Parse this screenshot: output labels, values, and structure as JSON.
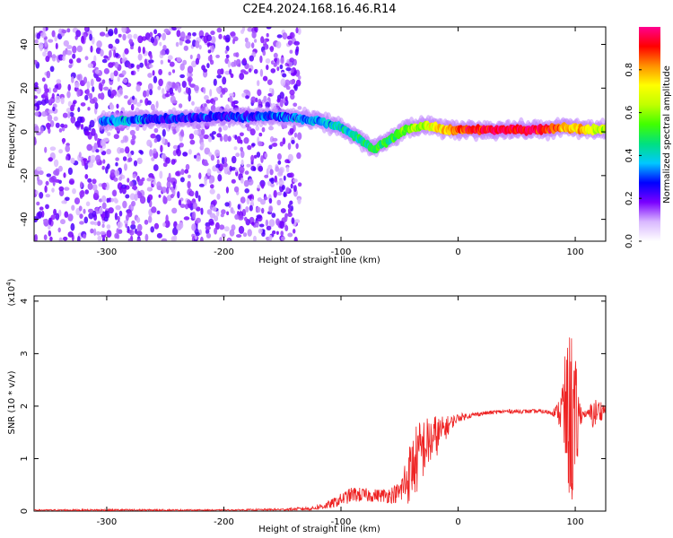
{
  "title": "C2E4.2024.168.16.46.R14",
  "chart_data": [
    {
      "type": "heatmap",
      "xlabel": "Height of straight line (km)",
      "ylabel": "Frequency (Hz)",
      "xlim": [
        -362,
        126
      ],
      "ylim": [
        -50,
        48
      ],
      "xticks": [
        -300,
        -200,
        -100,
        0,
        100
      ],
      "xtick_labels": [
        "-300",
        "-200",
        "-100",
        "0",
        "100"
      ],
      "yticks": [
        -40,
        -20,
        0,
        20,
        40
      ],
      "ytick_labels": [
        "-40",
        "-20",
        "0",
        "20",
        "40"
      ],
      "grid": false,
      "noise_region": {
        "x_range": [
          -362,
          -135
        ],
        "y_range": [
          -50,
          48
        ],
        "level": 0.1
      },
      "ridge": [
        {
          "x": -305,
          "y": 5,
          "amp": 0.3
        },
        {
          "x": -290,
          "y": 5,
          "amp": 0.35
        },
        {
          "x": -270,
          "y": 6,
          "amp": 0.3
        },
        {
          "x": -250,
          "y": 6,
          "amp": 0.25
        },
        {
          "x": -200,
          "y": 7,
          "amp": 0.25
        },
        {
          "x": -150,
          "y": 7,
          "amp": 0.3
        },
        {
          "x": -120,
          "y": 5,
          "amp": 0.35
        },
        {
          "x": -100,
          "y": 2,
          "amp": 0.4
        },
        {
          "x": -85,
          "y": -3,
          "amp": 0.45
        },
        {
          "x": -72,
          "y": -8,
          "amp": 0.5
        },
        {
          "x": -60,
          "y": -4,
          "amp": 0.5
        },
        {
          "x": -45,
          "y": 1,
          "amp": 0.55
        },
        {
          "x": -30,
          "y": 3,
          "amp": 0.6
        },
        {
          "x": -10,
          "y": 1,
          "amp": 0.8
        },
        {
          "x": 10,
          "y": 1,
          "amp": 0.9
        },
        {
          "x": 40,
          "y": 1,
          "amp": 0.95
        },
        {
          "x": 70,
          "y": 1,
          "amp": 0.95
        },
        {
          "x": 90,
          "y": 2,
          "amp": 0.8
        },
        {
          "x": 110,
          "y": 1,
          "amp": 0.75
        },
        {
          "x": 126,
          "y": 1,
          "amp": 0.6
        }
      ],
      "colorbar": {
        "label": "Normalized spectral amplitude",
        "range": [
          0,
          1
        ],
        "ticks": [
          0,
          0.2,
          0.4,
          0.6,
          0.8
        ],
        "tick_labels": [
          "0.0",
          "0.2",
          "0.4",
          "0.6",
          "0.8"
        ],
        "colors": [
          "#ffffff",
          "#d9b8ff",
          "#7a00ff",
          "#0000ff",
          "#00c8ff",
          "#00e080",
          "#40ff00",
          "#c0ff00",
          "#ffff00",
          "#ff9000",
          "#ff0000",
          "#ff0090"
        ]
      }
    },
    {
      "type": "line",
      "xlabel": "Height of straight line (km)",
      "ylabel": "SNR (10 * v/v)",
      "y_multiplier_label": "(x10",
      "y_multiplier_exp": "4",
      "y_multiplier_close": ")",
      "xlim": [
        -362,
        126
      ],
      "ylim": [
        0,
        4.1
      ],
      "xticks": [
        -300,
        -200,
        -100,
        0,
        100
      ],
      "xtick_labels": [
        "-300",
        "-200",
        "-100",
        "0",
        "100"
      ],
      "yticks": [
        0,
        1,
        2,
        3,
        4
      ],
      "ytick_labels": [
        "0",
        "1",
        "2",
        "3",
        "4"
      ],
      "grid": false,
      "series": [
        {
          "color": "#ee2222",
          "x": [
            -362,
            -300,
            -200,
            -150,
            -125,
            -110,
            -100,
            -90,
            -80,
            -70,
            -60,
            -50,
            -45,
            -40,
            -35,
            -30,
            -25,
            -20,
            -15,
            -10,
            -5,
            0,
            10,
            20,
            30,
            40,
            50,
            60,
            70,
            80,
            85,
            88,
            92,
            95,
            98,
            100,
            103,
            106,
            110,
            115,
            120,
            126
          ],
          "y": [
            0.02,
            0.02,
            0.02,
            0.03,
            0.05,
            0.12,
            0.22,
            0.32,
            0.3,
            0.3,
            0.3,
            0.35,
            0.55,
            0.8,
            1.0,
            1.2,
            1.3,
            1.4,
            1.5,
            1.6,
            1.7,
            1.78,
            1.82,
            1.86,
            1.88,
            1.9,
            1.9,
            1.9,
            1.9,
            1.88,
            1.9,
            1.9,
            1.85,
            1.8,
            1.8,
            1.3,
            1.85,
            1.85,
            1.85,
            1.85,
            1.9,
            1.95
          ],
          "noise": [
            0.01,
            0.02,
            0.01,
            0.02,
            0.04,
            0.08,
            0.12,
            0.15,
            0.14,
            0.12,
            0.15,
            0.2,
            0.5,
            0.6,
            0.7,
            0.6,
            0.5,
            0.45,
            0.3,
            0.22,
            0.12,
            0.08,
            0.05,
            0.04,
            0.04,
            0.04,
            0.04,
            0.04,
            0.04,
            0.05,
            0.15,
            0.6,
            1.2,
            1.6,
            1.9,
            1.7,
            0.4,
            0.1,
            0.05,
            0.3,
            0.25,
            0.1
          ]
        }
      ]
    }
  ]
}
